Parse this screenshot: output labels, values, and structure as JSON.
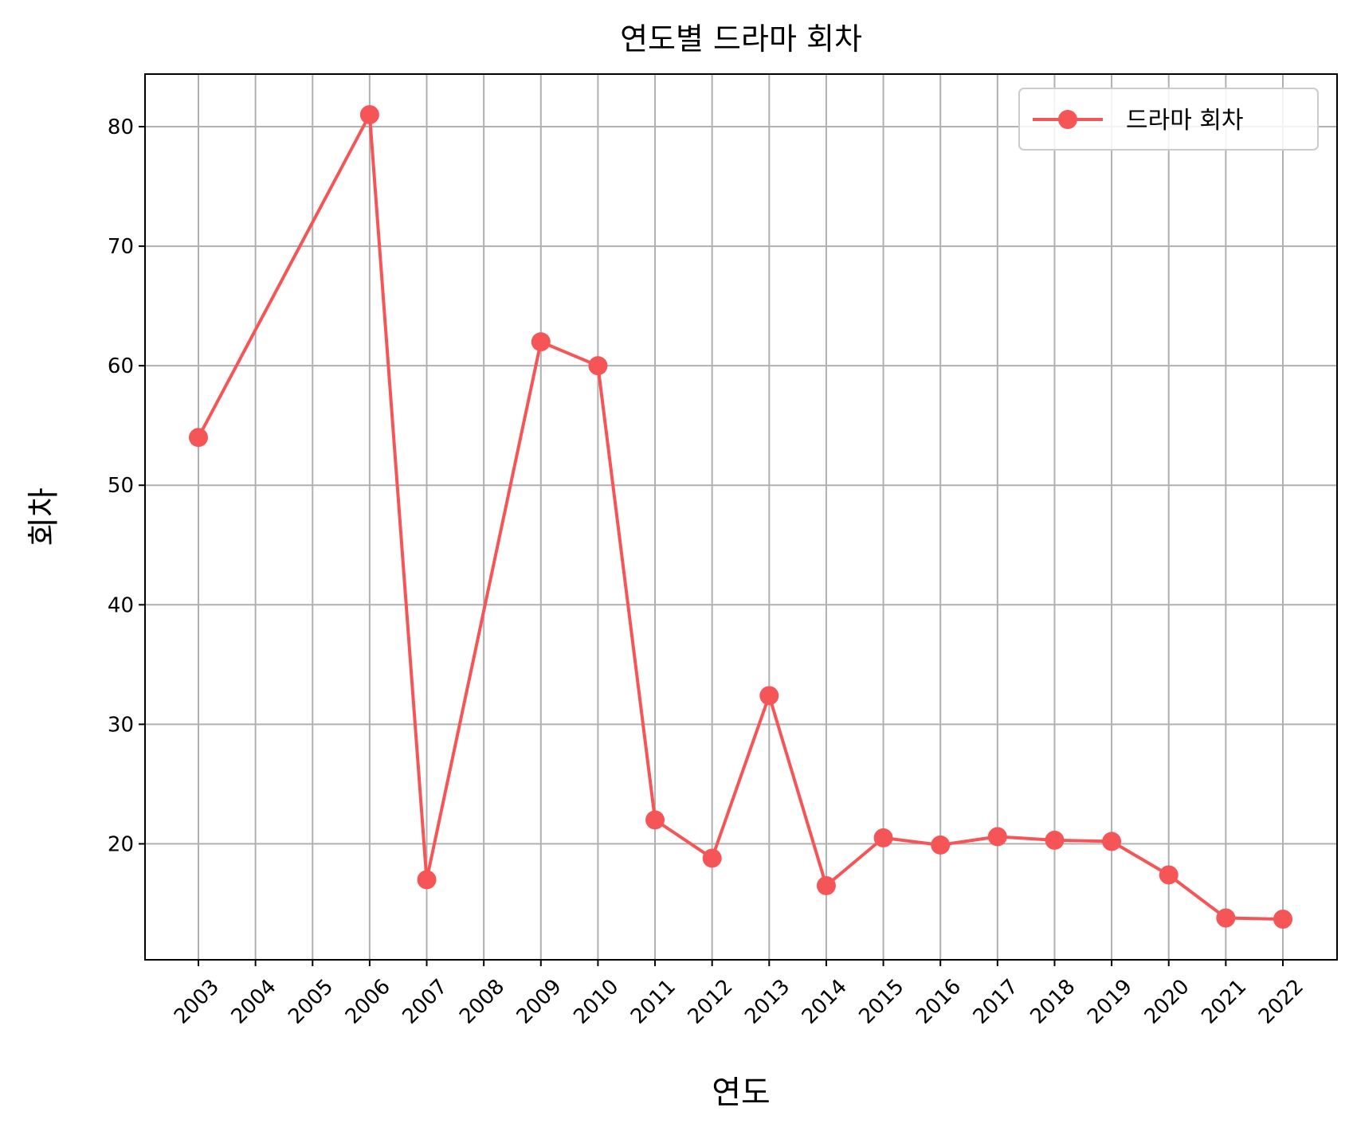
{
  "chart_data": {
    "type": "line",
    "title": "연도별 드라마 회차",
    "xlabel": "연도",
    "ylabel": "회차",
    "categories": [
      "2003",
      "2004",
      "2005",
      "2006",
      "2007",
      "2008",
      "2009",
      "2010",
      "2011",
      "2012",
      "2013",
      "2014",
      "2015",
      "2016",
      "2017",
      "2018",
      "2019",
      "2020",
      "2021",
      "2022"
    ],
    "series": [
      {
        "name": "드라마 회차",
        "x": [
          "2003",
          "2006",
          "2007",
          "2009",
          "2010",
          "2011",
          "2012",
          "2013",
          "2014",
          "2015",
          "2016",
          "2017",
          "2018",
          "2019",
          "2020",
          "2021",
          "2022"
        ],
        "values": [
          54,
          81,
          17,
          62,
          60,
          22,
          18.8,
          32.4,
          16.5,
          20.5,
          19.9,
          20.6,
          20.3,
          20.2,
          17.4,
          13.8,
          13.7
        ],
        "color": "#f55556"
      }
    ],
    "yticks": [
      20,
      30,
      40,
      50,
      60,
      70,
      80
    ],
    "ylim": [
      10.3,
      84.4
    ],
    "grid": true,
    "legend_position": "top-right"
  }
}
